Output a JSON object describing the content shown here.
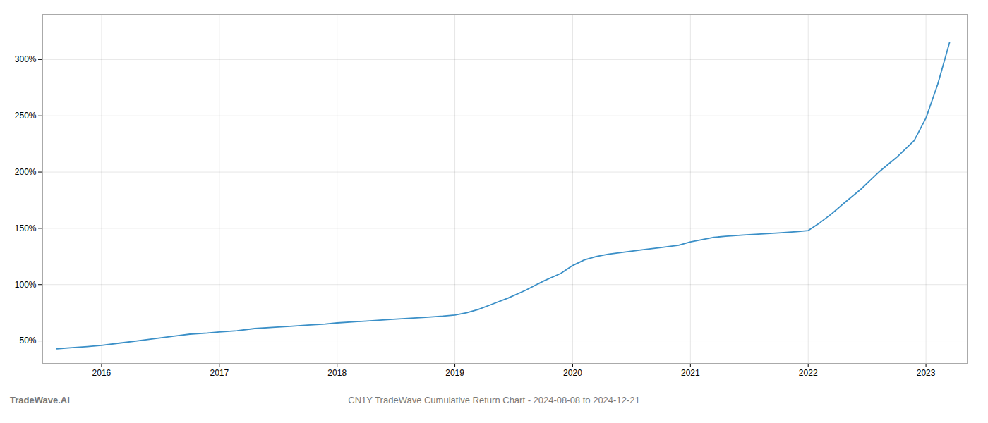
{
  "chart_data": {
    "type": "line",
    "title": "CN1Y TradeWave Cumulative Return Chart - 2024-08-08 to 2024-12-21",
    "annotations": [
      "TradeWave.AI"
    ],
    "color": "#3a8fc7",
    "x": [
      2015.62,
      2015.75,
      2015.88,
      2016.0,
      2016.15,
      2016.3,
      2016.45,
      2016.6,
      2016.75,
      2016.9,
      2017.0,
      2017.15,
      2017.3,
      2017.45,
      2017.6,
      2017.75,
      2017.9,
      2018.0,
      2018.15,
      2018.3,
      2018.45,
      2018.6,
      2018.75,
      2018.9,
      2019.0,
      2019.1,
      2019.2,
      2019.3,
      2019.45,
      2019.6,
      2019.75,
      2019.9,
      2020.0,
      2020.1,
      2020.2,
      2020.3,
      2020.45,
      2020.6,
      2020.75,
      2020.9,
      2021.0,
      2021.1,
      2021.2,
      2021.3,
      2021.45,
      2021.6,
      2021.75,
      2021.9,
      2022.0,
      2022.1,
      2022.2,
      2022.3,
      2022.45,
      2022.6,
      2022.75,
      2022.9,
      2023.0,
      2023.1,
      2023.2
    ],
    "values": [
      43,
      44,
      45,
      46,
      48,
      50,
      52,
      54,
      56,
      57,
      58,
      59,
      61,
      62,
      63,
      64,
      65,
      66,
      67,
      68,
      69,
      70,
      71,
      72,
      73,
      75,
      78,
      82,
      88,
      95,
      103,
      110,
      117,
      122,
      125,
      127,
      129,
      131,
      133,
      135,
      138,
      140,
      142,
      143,
      144,
      145,
      146,
      147,
      148,
      155,
      163,
      172,
      185,
      200,
      213,
      228,
      248,
      278,
      315
    ],
    "xlim": [
      2015.5,
      2023.35
    ],
    "xticks": [
      2016,
      2017,
      2018,
      2019,
      2020,
      2021,
      2022,
      2023
    ],
    "ylim": [
      30,
      340
    ],
    "yticks": [
      {
        "value": 50,
        "label": "50%"
      },
      {
        "value": 100,
        "label": "100%"
      },
      {
        "value": 150,
        "label": "150%"
      },
      {
        "value": 200,
        "label": "200%"
      },
      {
        "value": 250,
        "label": "250%"
      },
      {
        "value": 300,
        "label": "300%"
      }
    ],
    "grid": true
  }
}
